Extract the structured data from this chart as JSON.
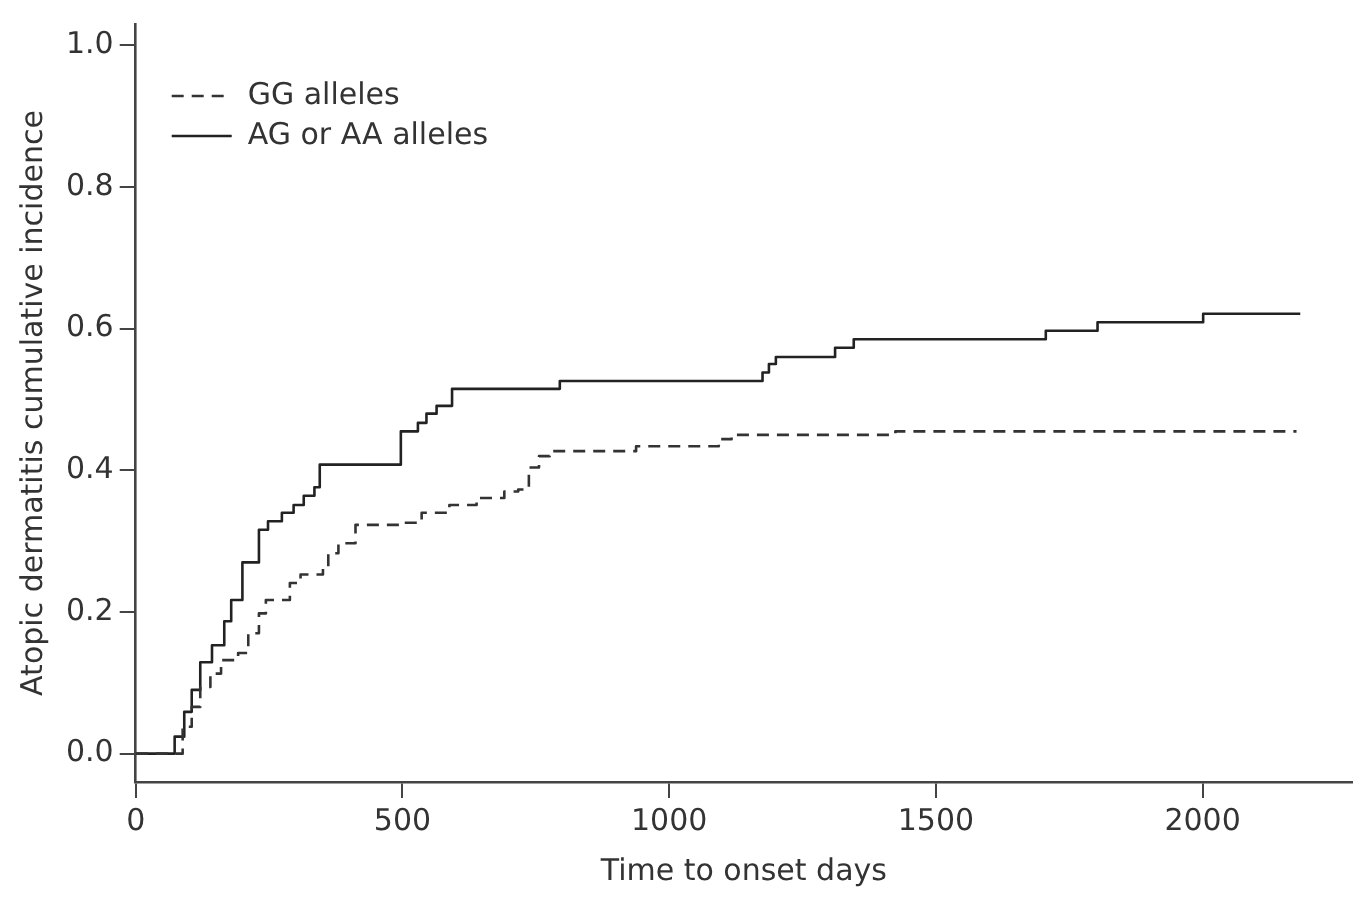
{
  "chart_data": {
    "type": "step",
    "xlabel": "Time to onset days",
    "ylabel": "Atopic dermatitis cumulative incidence",
    "xlim": [
      0,
      2280
    ],
    "ylim": [
      -0.04,
      1.03
    ],
    "xticks": [
      0,
      500,
      1000,
      1500,
      2000
    ],
    "yticks": [
      {
        "value": 0,
        "label": "0.0"
      },
      {
        "value": 0.2,
        "label": "0.2"
      },
      {
        "value": 0.4,
        "label": "0.4"
      },
      {
        "value": 0.6,
        "label": "0.6"
      },
      {
        "value": 0.8,
        "label": "0.8"
      },
      {
        "value": 1,
        "label": "1.0"
      }
    ],
    "grid": false,
    "legend": "top left",
    "marker": "none",
    "series": [
      {
        "name": "GG alleles",
        "color": "#333333",
        "line_style": "dashed",
        "x": [
          0,
          79,
          88,
          105,
          121,
          140,
          160,
          192,
          211,
          231,
          244,
          289,
          309,
          351,
          361,
          380,
          412,
          497,
          536,
          588,
          639,
          691,
          717,
          737,
          756,
          776,
          938,
          1093,
          1117,
          1424,
          2176
        ],
        "values": [
          0,
          0,
          0.038,
          0.066,
          0.094,
          0.113,
          0.132,
          0.142,
          0.17,
          0.198,
          0.217,
          0.241,
          0.253,
          0.264,
          0.283,
          0.297,
          0.323,
          0.326,
          0.34,
          0.351,
          0.361,
          0.37,
          0.373,
          0.404,
          0.42,
          0.427,
          0.434,
          0.444,
          0.45,
          0.455,
          0.455
        ]
      },
      {
        "name": "AG or AA alleles",
        "color": "#222222",
        "line_style": "solid",
        "x": [
          0,
          73,
          91,
          105,
          121,
          143,
          166,
          179,
          200,
          231,
          248,
          274,
          296,
          315,
          335,
          345,
          497,
          529,
          545,
          564,
          593,
          795,
          1175,
          1187,
          1200,
          1311,
          1346,
          1706,
          1803,
          2001,
          2183
        ],
        "values": [
          0,
          0.024,
          0.059,
          0.09,
          0.129,
          0.153,
          0.187,
          0.217,
          0.27,
          0.316,
          0.328,
          0.34,
          0.351,
          0.364,
          0.376,
          0.408,
          0.455,
          0.467,
          0.48,
          0.491,
          0.515,
          0.526,
          0.538,
          0.55,
          0.56,
          0.573,
          0.585,
          0.597,
          0.609,
          0.621,
          0.621
        ]
      }
    ]
  }
}
